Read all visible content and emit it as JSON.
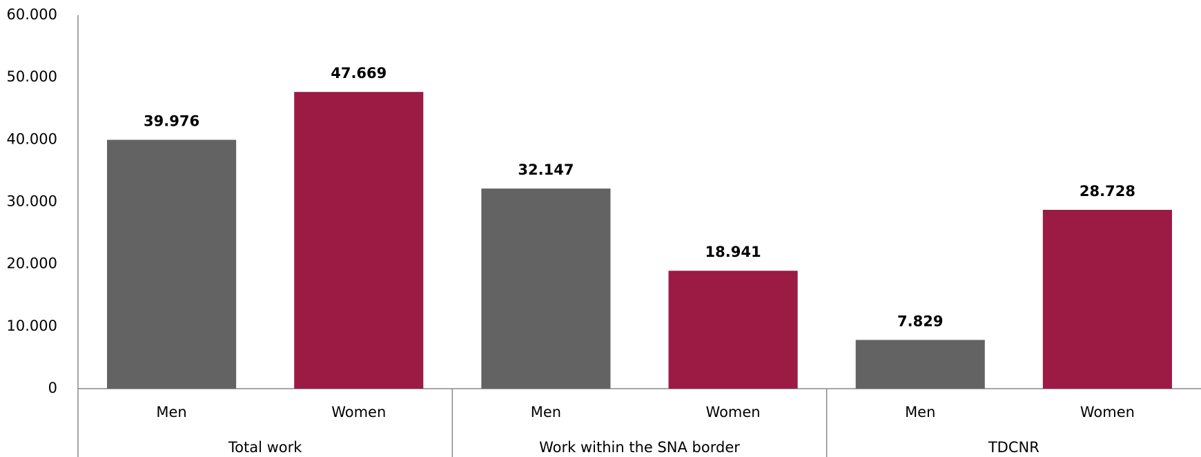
{
  "chart_data": {
    "type": "bar",
    "categories": [
      "Total work",
      "Work within the SNA border",
      "TDCNR"
    ],
    "series": [
      {
        "name": "Men",
        "color": "#636363",
        "label_color": "#000000",
        "values": [
          39976,
          32147,
          7829
        ],
        "value_labels": [
          "39.976",
          "32.147",
          "7.829"
        ]
      },
      {
        "name": "Women",
        "color": "#9b1b45",
        "label_color": "#9b1b45",
        "values": [
          47669,
          18941,
          28728
        ],
        "value_labels": [
          "47.669",
          "18.941",
          "28.728"
        ]
      }
    ],
    "ylim": [
      0,
      60000
    ],
    "yticks": [
      0,
      {
        "value": 10000,
        "label": "10.000"
      },
      {
        "value": 20000,
        "label": "20.000"
      },
      {
        "value": 30000,
        "label": "30.000"
      },
      {
        "value": 40000,
        "label": "40.000"
      },
      {
        "value": 50000,
        "label": "50.000"
      },
      {
        "value": 60000,
        "label": "60.000"
      }
    ],
    "grid": false
  }
}
